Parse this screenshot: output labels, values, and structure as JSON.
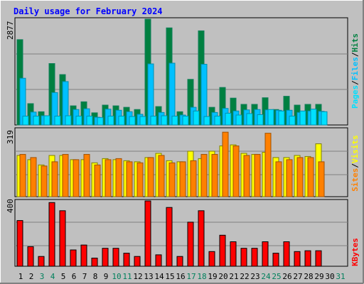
{
  "title": "Daily usage for February 2024",
  "colors": {
    "background": "#C0C0C0",
    "title": "#0000FF",
    "hits": "#008040",
    "files": "#00C0FF",
    "pages": "#00E0FF",
    "visits": "#FFFF00",
    "sites": "#FF8000",
    "kbytes": "#FF0000",
    "weekend_day": "#00805C",
    "weekday_day": "#000000"
  },
  "chart_data": [
    {
      "type": "bar",
      "panel": "top",
      "ymax_label": "2877",
      "ylim": [
        0,
        2877
      ],
      "legend": [
        "Pages",
        "/",
        "Files",
        "/",
        "Hits"
      ],
      "categories": [
        "1",
        "2",
        "3",
        "4",
        "5",
        "6",
        "7",
        "8",
        "9",
        "10",
        "11",
        "12",
        "13",
        "14",
        "15",
        "16",
        "17",
        "18",
        "19",
        "20",
        "21",
        "22",
        "23",
        "24",
        "25",
        "26",
        "27",
        "28",
        "29",
        "30",
        "31"
      ],
      "series": [
        {
          "name": "Hits",
          "values": [
            2320,
            580,
            360,
            1670,
            1370,
            520,
            630,
            330,
            540,
            520,
            480,
            420,
            2877,
            500,
            2640,
            360,
            1240,
            2560,
            480,
            1020,
            730,
            560,
            560,
            740,
            420,
            780,
            540,
            560,
            560,
            null,
            null
          ]
        },
        {
          "name": "Files",
          "values": [
            1270,
            350,
            250,
            880,
            1180,
            420,
            440,
            210,
            430,
            400,
            360,
            290,
            1660,
            340,
            1680,
            270,
            480,
            1650,
            340,
            450,
            380,
            410,
            420,
            410,
            400,
            400,
            340,
            380,
            370,
            null,
            null
          ]
        },
        {
          "name": "Pages",
          "values": [
            240,
            240,
            250,
            240,
            250,
            240,
            240,
            200,
            240,
            240,
            230,
            230,
            240,
            250,
            240,
            240,
            380,
            230,
            240,
            320,
            270,
            310,
            280,
            420,
            380,
            240,
            380,
            430,
            360,
            null,
            null
          ]
        }
      ]
    },
    {
      "type": "bar",
      "panel": "middle",
      "ymax_label": "319",
      "ylim": [
        0,
        319
      ],
      "legend": [
        "Sites",
        "/",
        "Visits"
      ],
      "categories": [
        "1",
        "2",
        "3",
        "4",
        "5",
        "6",
        "7",
        "8",
        "9",
        "10",
        "11",
        "12",
        "13",
        "14",
        "15",
        "16",
        "17",
        "18",
        "19",
        "20",
        "21",
        "22",
        "23",
        "24",
        "25",
        "26",
        "27",
        "28",
        "29",
        "30",
        "31"
      ],
      "series": [
        {
          "name": "Visits",
          "values": [
            195,
            175,
            150,
            195,
            195,
            175,
            175,
            160,
            180,
            175,
            170,
            165,
            185,
            205,
            170,
            165,
            215,
            180,
            215,
            240,
            245,
            205,
            200,
            210,
            185,
            185,
            195,
            190,
            250,
            null,
            null
          ]
        },
        {
          "name": "Sites",
          "values": [
            200,
            185,
            145,
            165,
            200,
            175,
            200,
            150,
            175,
            180,
            165,
            160,
            185,
            195,
            160,
            165,
            170,
            200,
            200,
            305,
            240,
            195,
            200,
            300,
            165,
            175,
            185,
            185,
            165,
            null,
            null
          ]
        }
      ]
    },
    {
      "type": "bar",
      "panel": "bottom",
      "ymax_label": "400",
      "ylim": [
        0,
        400
      ],
      "legend": [
        "KBytes"
      ],
      "categories": [
        "1",
        "2",
        "3",
        "4",
        "5",
        "6",
        "7",
        "8",
        "9",
        "10",
        "11",
        "12",
        "13",
        "14",
        "15",
        "16",
        "17",
        "18",
        "19",
        "20",
        "21",
        "22",
        "23",
        "24",
        "25",
        "26",
        "27",
        "28",
        "29",
        "30",
        "31"
      ],
      "series": [
        {
          "name": "KBytes",
          "values": [
            280,
            120,
            60,
            390,
            340,
            100,
            130,
            50,
            110,
            110,
            80,
            60,
            400,
            70,
            360,
            60,
            270,
            340,
            90,
            190,
            150,
            110,
            110,
            150,
            80,
            150,
            90,
            95,
            95,
            null,
            null
          ]
        }
      ]
    }
  ],
  "days": [
    "1",
    "2",
    "3",
    "4",
    "5",
    "6",
    "7",
    "8",
    "9",
    "10",
    "11",
    "12",
    "13",
    "14",
    "15",
    "16",
    "17",
    "18",
    "19",
    "20",
    "21",
    "22",
    "23",
    "24",
    "25",
    "26",
    "27",
    "28",
    "29",
    "30",
    "31"
  ],
  "weekend_days": [
    "3",
    "4",
    "10",
    "11",
    "17",
    "18",
    "24",
    "25",
    "31"
  ]
}
